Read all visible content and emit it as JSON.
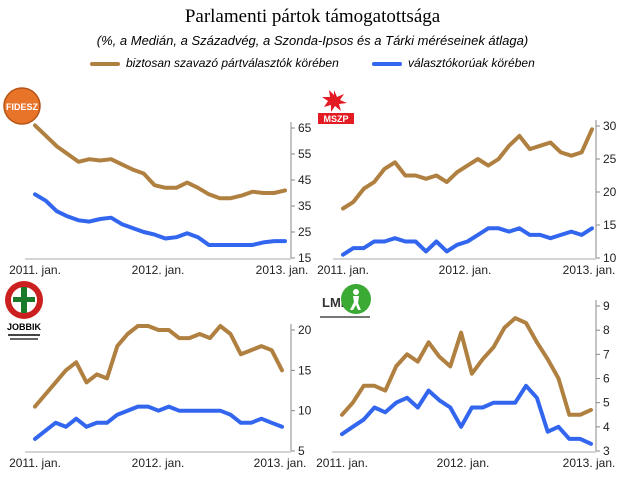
{
  "title": "Parlamenti pártok támogatottsága",
  "subtitle": "(%, a Medián, a Századvég, a Szonda-Ipsos és a Tárki méréseinek átlaga)",
  "legend": [
    {
      "label": "biztosan szavazó pártválasztók körében",
      "color": "#b08040"
    },
    {
      "label": "választókorúak körében",
      "color": "#3366ee"
    }
  ],
  "chart_data": [
    {
      "type": "line",
      "party_logo_text": "FIDESZ",
      "x_tick_labels": [
        "2011. jan.",
        "2012. jan.",
        "2013. jan."
      ],
      "ylim": [
        15,
        65
      ],
      "yticks": [
        15,
        25,
        35,
        45,
        55,
        65
      ],
      "series": [
        {
          "name": "biztosan szavazó pártválasztók körében",
          "values": [
            66,
            62,
            58,
            55,
            52,
            53,
            52.5,
            53,
            51,
            49,
            47.5,
            43,
            42,
            42,
            44,
            42,
            39.5,
            38,
            38,
            39,
            40.5,
            40,
            40,
            41
          ]
        },
        {
          "name": "választókorúak körében",
          "values": [
            39.5,
            37,
            33,
            31,
            29.5,
            29,
            30,
            30.5,
            28,
            26.5,
            25,
            24,
            22.5,
            23,
            24.5,
            23,
            20,
            20,
            20,
            20,
            20,
            21,
            21.5,
            21.5
          ]
        }
      ]
    },
    {
      "type": "line",
      "party_logo_text": "MSZP",
      "x_tick_labels": [
        "2011. jan.",
        "2012. jan.",
        "2013. jan."
      ],
      "ylim": [
        10,
        30
      ],
      "yticks": [
        10,
        15,
        20,
        25,
        30
      ],
      "series": [
        {
          "name": "biztosan szavazó pártválasztók körében",
          "values": [
            17.5,
            18.5,
            20.5,
            21.5,
            23.5,
            24.5,
            22.5,
            22.5,
            22,
            22.5,
            21.5,
            23,
            24,
            25,
            24,
            25,
            27,
            28.5,
            26.5,
            27,
            27.5,
            26,
            25.5,
            26,
            29.5
          ]
        },
        {
          "name": "választókorúak körében",
          "values": [
            10.5,
            11.5,
            11.5,
            12.5,
            12.5,
            13,
            12.5,
            12.5,
            11,
            12.5,
            11,
            12,
            12.5,
            13.5,
            14.5,
            14.5,
            14,
            14.5,
            13.5,
            13.5,
            13,
            13.5,
            14,
            13.5,
            14.5
          ]
        }
      ]
    },
    {
      "type": "line",
      "party_logo_text": "JOBBIK",
      "x_tick_labels": [
        "2011. jan.",
        "2012. jan.",
        "2013. jan."
      ],
      "ylim": [
        5,
        20
      ],
      "yticks": [
        5,
        10,
        15,
        20
      ],
      "series": [
        {
          "name": "biztosan szavazó pártválasztók körében",
          "values": [
            10.5,
            12,
            13.5,
            15,
            16,
            13.5,
            14.5,
            14,
            18,
            19.5,
            20.5,
            20.5,
            20,
            20,
            19,
            19,
            19.5,
            19,
            20.5,
            19.5,
            17,
            17.5,
            18,
            17.5,
            15
          ]
        },
        {
          "name": "választókorúak körében",
          "values": [
            6.5,
            7.5,
            8.5,
            8,
            9,
            8,
            8.5,
            8.5,
            9.5,
            10,
            10.5,
            10.5,
            10,
            10.5,
            10,
            10,
            10,
            10,
            10,
            9.5,
            8.5,
            8.5,
            9,
            8.5,
            8
          ]
        }
      ]
    },
    {
      "type": "line",
      "party_logo_text": "LMP",
      "x_tick_labels": [
        "2011. jan.",
        "2012. jan.",
        "2013. jan."
      ],
      "ylim": [
        3,
        9
      ],
      "yticks": [
        3,
        4,
        5,
        6,
        7,
        8,
        9
      ],
      "series": [
        {
          "name": "biztosan szavazó pártválasztók körében",
          "values": [
            4.5,
            5,
            5.7,
            5.7,
            5.5,
            6.5,
            7,
            6.7,
            7.5,
            6.9,
            6.5,
            7.9,
            6.2,
            6.8,
            7.3,
            8.1,
            8.5,
            8.3,
            7.5,
            6.8,
            6,
            4.5,
            4.5,
            4.7
          ]
        },
        {
          "name": "választókorúak körében",
          "values": [
            3.7,
            4,
            4.3,
            4.8,
            4.6,
            5,
            5.2,
            4.8,
            5.5,
            5.1,
            4.8,
            4,
            4.8,
            4.8,
            5,
            5,
            5,
            5.7,
            5.2,
            3.8,
            4,
            3.5,
            3.5,
            3.3
          ]
        }
      ]
    }
  ]
}
